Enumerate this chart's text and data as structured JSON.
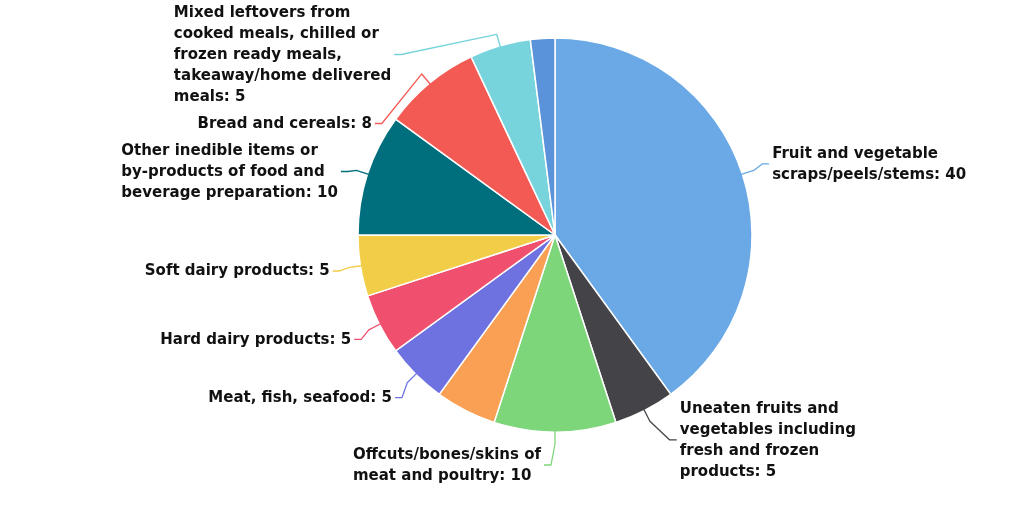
{
  "chart_data": {
    "type": "pie",
    "categories": [
      "Fruit and vegetable scraps/peels/stems",
      "Uneaten fruits and vegetables including fresh and frozen products",
      "Offcuts/bones/skins of meat and poultry",
      null,
      "Meat, fish, seafood",
      "Hard dairy products",
      "Soft dairy products",
      "Other inedible items or by-products of food and beverage preparation",
      "Bread and cereals",
      "Mixed leftovers from cooked meals, chilled or frozen ready meals, takeaway/home delivered meals",
      null
    ],
    "values": [
      40,
      5,
      10,
      5,
      5,
      5,
      5,
      10,
      8,
      5,
      2
    ],
    "value_labels": [
      "40",
      "5",
      "10",
      null,
      "5",
      "5",
      "5",
      "10",
      "8",
      "5",
      null
    ],
    "colors": [
      "#6aa9e6",
      "#434348",
      "#7ed67a",
      "#f9a054",
      "#6e72e0",
      "#f0506e",
      "#f2cd47",
      "#006f7d",
      "#f35a54",
      "#77d4dc",
      "#5a93d9"
    ]
  }
}
